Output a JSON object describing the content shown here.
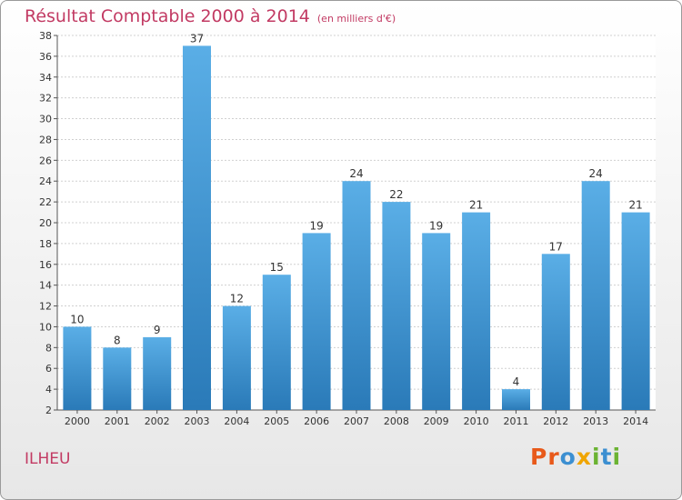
{
  "title": "Résultat Comptable 2000 à 2014",
  "subtitle": "(en milliers d'€)",
  "commune": "ILHEU",
  "logo": {
    "letters": [
      "P",
      "r",
      "o",
      "x",
      "i",
      "t",
      "i"
    ]
  },
  "colors": {
    "title": "#c23a63",
    "bar_light": "#5aaee6",
    "bar_dark": "#2a7ab8",
    "logo": [
      "#e8591a",
      "#e8591a",
      "#3c8fd1",
      "#f0a500",
      "#6bb332",
      "#3c8fd1",
      "#6bb332"
    ]
  },
  "chart_data": {
    "type": "bar",
    "title": "Résultat Comptable 2000 à 2014",
    "xlabel": "",
    "ylabel": "",
    "categories": [
      "2000",
      "2001",
      "2002",
      "2003",
      "2004",
      "2005",
      "2006",
      "2007",
      "2008",
      "2009",
      "2010",
      "2011",
      "2012",
      "2013",
      "2014"
    ],
    "values": [
      10,
      8,
      9,
      37,
      12,
      15,
      19,
      24,
      22,
      19,
      21,
      4,
      17,
      24,
      21
    ],
    "ylim": [
      2,
      38
    ],
    "yticks": [
      2,
      4,
      6,
      8,
      10,
      12,
      14,
      16,
      18,
      20,
      22,
      24,
      26,
      28,
      30,
      32,
      34,
      36,
      38
    ],
    "grid": true,
    "legend": "none"
  }
}
